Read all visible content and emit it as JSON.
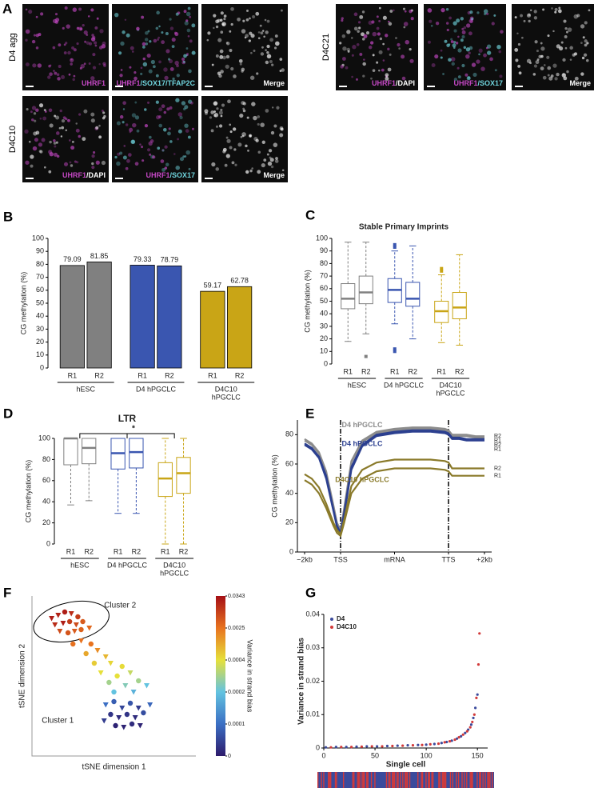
{
  "microscopy": {
    "panel": "A",
    "groups": [
      {
        "label": "D4 agg",
        "captions": [
          [
            {
              "text": "UHRF1",
              "color": "#c548c5"
            }
          ],
          [
            {
              "text": "UHRF1",
              "color": "#c548c5"
            },
            {
              "text": "/SOX17/TFAP2C",
              "color": "#6fd3dc"
            }
          ],
          [
            {
              "text": "Merge",
              "color": "#ffffff"
            }
          ]
        ]
      },
      {
        "label": "D4C10",
        "captions": [
          [
            {
              "text": "UHRF1",
              "color": "#c548c5"
            },
            {
              "text": "/DAPI",
              "color": "#ffffff"
            }
          ],
          [
            {
              "text": "UHRF1",
              "color": "#c548c5"
            },
            {
              "text": "/SOX17",
              "color": "#6fd3dc"
            }
          ],
          [
            {
              "text": "Merge",
              "color": "#ffffff"
            }
          ]
        ]
      },
      {
        "label": "D4C21",
        "captions": [
          [
            {
              "text": "UHRF1",
              "color": "#c548c5"
            },
            {
              "text": "/DAPI",
              "color": "#ffffff"
            }
          ],
          [
            {
              "text": "UHRF1",
              "color": "#c548c5"
            },
            {
              "text": "/SOX17",
              "color": "#6fd3dc"
            }
          ],
          [
            {
              "text": "Merge",
              "color": "#ffffff"
            }
          ]
        ]
      }
    ]
  },
  "chart_data": [
    {
      "panel": "B",
      "type": "bar",
      "ylabel": "CG methylation (%)",
      "ylim": [
        0,
        100
      ],
      "yticks": [
        0,
        10,
        20,
        30,
        40,
        50,
        60,
        70,
        80,
        90,
        100
      ],
      "groups": [
        {
          "label_lines": [
            "hESC"
          ],
          "categories": [
            "R1",
            "R2"
          ],
          "values": [
            79.09,
            81.85
          ],
          "color": "#808080"
        },
        {
          "label_lines": [
            "D4 hPGCLC"
          ],
          "categories": [
            "R1",
            "R2"
          ],
          "values": [
            79.33,
            78.79
          ],
          "color": "#3a56b0"
        },
        {
          "label_lines": [
            "D4C10",
            "hPGCLC"
          ],
          "categories": [
            "R1",
            "R2"
          ],
          "values": [
            59.17,
            62.78
          ],
          "color": "#c9a516"
        }
      ]
    },
    {
      "panel": "C",
      "type": "box",
      "title": "Stable Primary Imprints",
      "ylabel": "CG methylation (%)",
      "ylim": [
        0,
        100
      ],
      "yticks": [
        0,
        10,
        20,
        30,
        40,
        50,
        60,
        70,
        80,
        90,
        100
      ],
      "groups": [
        {
          "label_lines": [
            "hESC"
          ],
          "categories": [
            "R1",
            "R2"
          ],
          "color": "#808080",
          "boxes": [
            {
              "whislo": 18,
              "q1": 44,
              "med": 52,
              "q3": 64,
              "whishi": 97,
              "fliers": []
            },
            {
              "whislo": 24,
              "q1": 48,
              "med": 57,
              "q3": 70,
              "whishi": 97,
              "fliers": [
                6
              ]
            }
          ]
        },
        {
          "label_lines": [
            "D4 hPGCLC"
          ],
          "categories": [
            "R1",
            "R2"
          ],
          "color": "#3a56b0",
          "boxes": [
            {
              "whislo": 32,
              "q1": 49,
              "med": 59,
              "q3": 68,
              "whishi": 90,
              "fliers": [
                12,
                10,
                93,
                95
              ]
            },
            {
              "whislo": 20,
              "q1": 46,
              "med": 52,
              "q3": 65,
              "whishi": 94,
              "fliers": []
            }
          ]
        },
        {
          "label_lines": [
            "D4C10",
            "hPGCLC"
          ],
          "categories": [
            "R1",
            "R2"
          ],
          "color": "#c9a516",
          "boxes": [
            {
              "whislo": 17,
              "q1": 33,
              "med": 42,
              "q3": 50,
              "whishi": 71,
              "fliers": [
                74,
                76
              ]
            },
            {
              "whislo": 15,
              "q1": 36,
              "med": 45,
              "q3": 57,
              "whishi": 87,
              "fliers": []
            }
          ]
        }
      ]
    },
    {
      "panel": "D",
      "type": "box",
      "title": "LTR",
      "annotation": "*",
      "ylabel": "CG methylation (%)",
      "ylim": [
        0,
        100
      ],
      "yticks": [
        0,
        20,
        40,
        60,
        80,
        100
      ],
      "groups": [
        {
          "label_lines": [
            "hESC"
          ],
          "categories": [
            "R1",
            "R2"
          ],
          "color": "#808080",
          "boxes": [
            {
              "whislo": 37,
              "q1": 75,
              "med": 100,
              "q3": 100,
              "whishi": 100,
              "fliers": []
            },
            {
              "whislo": 41,
              "q1": 76,
              "med": 91,
              "q3": 100,
              "whishi": 100,
              "fliers": []
            }
          ]
        },
        {
          "label_lines": [
            "D4 hPGCLC"
          ],
          "categories": [
            "R1",
            "R2"
          ],
          "color": "#3a56b0",
          "boxes": [
            {
              "whislo": 29,
              "q1": 71,
              "med": 86,
              "q3": 100,
              "whishi": 100,
              "fliers": []
            },
            {
              "whislo": 29,
              "q1": 72,
              "med": 87,
              "q3": 100,
              "whishi": 100,
              "fliers": []
            }
          ]
        },
        {
          "label_lines": [
            "D4C10",
            "hPGCLC"
          ],
          "categories": [
            "R1",
            "R2"
          ],
          "color": "#c9a516",
          "boxes": [
            {
              "whislo": 0,
              "q1": 45,
              "med": 62,
              "q3": 77,
              "whishi": 100,
              "fliers": []
            },
            {
              "whislo": 0,
              "q1": 48,
              "med": 67,
              "q3": 82,
              "whishi": 100,
              "fliers": []
            }
          ]
        }
      ]
    },
    {
      "panel": "E",
      "type": "line",
      "ylabel": "CG methylation (%)",
      "xlim": [
        -4,
        104
      ],
      "ylim": [
        0,
        90
      ],
      "yticks": [
        0,
        20,
        40,
        60,
        80
      ],
      "xticks": [
        {
          "value": 0,
          "label": "−2kb"
        },
        {
          "value": 20,
          "label": "TSS"
        },
        {
          "value": 50,
          "label": "mRNA"
        },
        {
          "value": 80,
          "label": "TTS"
        },
        {
          "value": 100,
          "label": "+2kb"
        }
      ],
      "vlines": [
        20,
        80
      ],
      "x": [
        0,
        4,
        8,
        12,
        16,
        18,
        20,
        22,
        26,
        32,
        40,
        50,
        60,
        70,
        78,
        80,
        82,
        86,
        90,
        95,
        100
      ],
      "series": [
        {
          "name": "R2",
          "color": "#8c8c8c",
          "values": [
            77,
            74,
            68,
            55,
            32,
            20,
            15,
            30,
            62,
            76,
            82,
            84,
            85,
            85,
            84,
            83,
            80,
            80,
            80,
            79,
            79
          ]
        },
        {
          "name": "R1",
          "color": "#8c8c8c",
          "values": [
            76,
            73,
            67,
            54,
            31,
            19,
            14,
            29,
            61,
            75,
            81,
            83,
            84,
            84,
            83,
            82,
            79,
            79,
            79,
            78,
            78
          ]
        },
        {
          "name": "R2",
          "color": "#2b3f8f",
          "values": [
            74,
            71,
            65,
            52,
            29,
            18,
            13,
            27,
            58,
            73,
            80,
            82,
            83,
            83,
            82,
            81,
            78,
            78,
            77,
            77,
            77
          ]
        },
        {
          "name": "R1",
          "color": "#2b3f8f",
          "values": [
            73,
            70,
            64,
            50,
            28,
            17,
            12,
            25,
            56,
            72,
            79,
            81,
            82,
            82,
            81,
            80,
            77,
            77,
            76,
            76,
            76
          ]
        },
        {
          "name": "R2",
          "color": "#8a7a2a",
          "values": [
            53,
            50,
            44,
            33,
            20,
            15,
            12,
            22,
            45,
            56,
            61,
            63,
            63,
            63,
            62,
            61,
            57,
            57,
            57,
            57,
            57
          ]
        },
        {
          "name": "R1",
          "color": "#8a7a2a",
          "values": [
            49,
            46,
            40,
            30,
            18,
            13,
            11,
            20,
            40,
            50,
            55,
            57,
            57,
            57,
            56,
            55,
            52,
            52,
            52,
            52,
            52
          ]
        }
      ],
      "annotations": [
        {
          "text": "D4 hPGCLC",
          "color": "#8c8c8c"
        },
        {
          "text": "D4 hPGCLC",
          "color": "#2b3f8f"
        },
        {
          "text": "D4C10 hPGCLC",
          "color": "#8a7a2a"
        }
      ]
    },
    {
      "panel": "F",
      "type": "scatter",
      "xlabel": "tSNE dimension 1",
      "ylabel": "tSNE dimension 2",
      "xlim": [
        0,
        100
      ],
      "ylim": [
        0,
        100
      ],
      "x": [
        12,
        16,
        20,
        24,
        28,
        14,
        19,
        23,
        27,
        31,
        17,
        22,
        26,
        30,
        35,
        25,
        30,
        36,
        40,
        33,
        45,
        38,
        48,
        55,
        42,
        52,
        60,
        47,
        57,
        65,
        70,
        50,
        62,
        45,
        50,
        55,
        60,
        65,
        48,
        53,
        58,
        63,
        68,
        72,
        51,
        56,
        61,
        66,
        44
      ],
      "y": [
        86,
        88,
        90,
        89,
        87,
        82,
        83,
        84,
        82,
        84,
        78,
        77,
        78,
        79,
        80,
        70,
        72,
        70,
        66,
        64,
        62,
        58,
        58,
        56,
        52,
        50,
        52,
        46,
        44,
        47,
        44,
        40,
        40,
        32,
        34,
        30,
        33,
        30,
        26,
        24,
        26,
        24,
        27,
        32,
        19,
        18,
        20,
        19,
        22
      ],
      "values": [
        0.03,
        0.028,
        0.03,
        0.025,
        0.02,
        0.025,
        0.03,
        0.02,
        0.015,
        0.01,
        0.015,
        0.012,
        0.01,
        0.008,
        0.006,
        0.003,
        0.0028,
        0.0025,
        0.002,
        0.0015,
        0.0012,
        0.0008,
        0.0006,
        0.0005,
        0.0004,
        0.0004,
        0.00035,
        0.0003,
        0.00025,
        0.0003,
        0.0002,
        0.0002,
        0.00018,
        0.0001,
        8e-05,
        5e-05,
        7e-05,
        4e-05,
        3e-05,
        2e-05,
        3e-05,
        2e-05,
        6e-05,
        9e-05,
        1e-05,
        1e-05,
        2e-05,
        1e-05,
        4e-05
      ],
      "markers": [
        "v",
        "v",
        "o",
        "v",
        "o",
        "v",
        "v",
        "o",
        "v",
        "o",
        "v",
        "o",
        "v",
        "o",
        "v",
        "o",
        "v",
        "o",
        "v",
        "o",
        "v",
        "o",
        "v",
        "o",
        "v",
        "o",
        "v",
        "o",
        "v",
        "o",
        "v",
        "o",
        "v",
        "v",
        "o",
        "v",
        "o",
        "v",
        "o",
        "v",
        "o",
        "v",
        "o",
        "v",
        "o",
        "v",
        "o",
        "v",
        "v"
      ],
      "annotations": [
        "Cluster 2",
        "Cluster 1"
      ],
      "colorbar": {
        "label": "Variance in strand bias",
        "ticks": [
          0,
          0.0001,
          0.0002,
          0.0004,
          0.0025,
          0.0343
        ],
        "colors": [
          "#2d1b6b",
          "#3b6fc4",
          "#63c3e0",
          "#e6e03a",
          "#e8731f",
          "#a50f15"
        ]
      }
    },
    {
      "panel": "G",
      "type": "scatter",
      "xlabel": "Single cell",
      "ylabel": "Variance in strand bias",
      "legend": "upper left",
      "xlim": [
        0,
        160
      ],
      "ylim": [
        0,
        0.04
      ],
      "xticks": [
        0,
        50,
        100,
        150
      ],
      "yticks": [
        0,
        0.01,
        0.02,
        0.03,
        0.04
      ],
      "series": [
        {
          "name": "D4",
          "color": "#3b4a9c",
          "x": [
            2,
            12,
            22,
            32,
            42,
            52,
            62,
            72,
            82,
            92,
            100,
            108,
            115,
            120,
            125,
            130,
            134,
            138,
            141,
            144,
            146,
            148,
            150
          ],
          "values": [
            0.0002,
            0.0003,
            0.0003,
            0.0004,
            0.0005,
            0.0005,
            0.0006,
            0.0007,
            0.0008,
            0.0009,
            0.001,
            0.0012,
            0.0015,
            0.0018,
            0.0022,
            0.0028,
            0.0035,
            0.0045,
            0.0055,
            0.007,
            0.009,
            0.012,
            0.016
          ]
        },
        {
          "name": "D4C10",
          "color": "#d23a3a",
          "x": [
            7,
            17,
            27,
            37,
            47,
            57,
            67,
            77,
            87,
            96,
            104,
            112,
            118,
            123,
            128,
            132,
            136,
            140,
            143,
            145,
            147,
            149,
            151,
            152
          ],
          "values": [
            0.0002,
            0.0003,
            0.0003,
            0.0004,
            0.0005,
            0.0005,
            0.0006,
            0.0007,
            0.0008,
            0.0009,
            0.0011,
            0.0013,
            0.0017,
            0.002,
            0.0025,
            0.0032,
            0.004,
            0.005,
            0.0062,
            0.0078,
            0.01,
            0.015,
            0.025,
            0.0343
          ]
        }
      ]
    }
  ]
}
